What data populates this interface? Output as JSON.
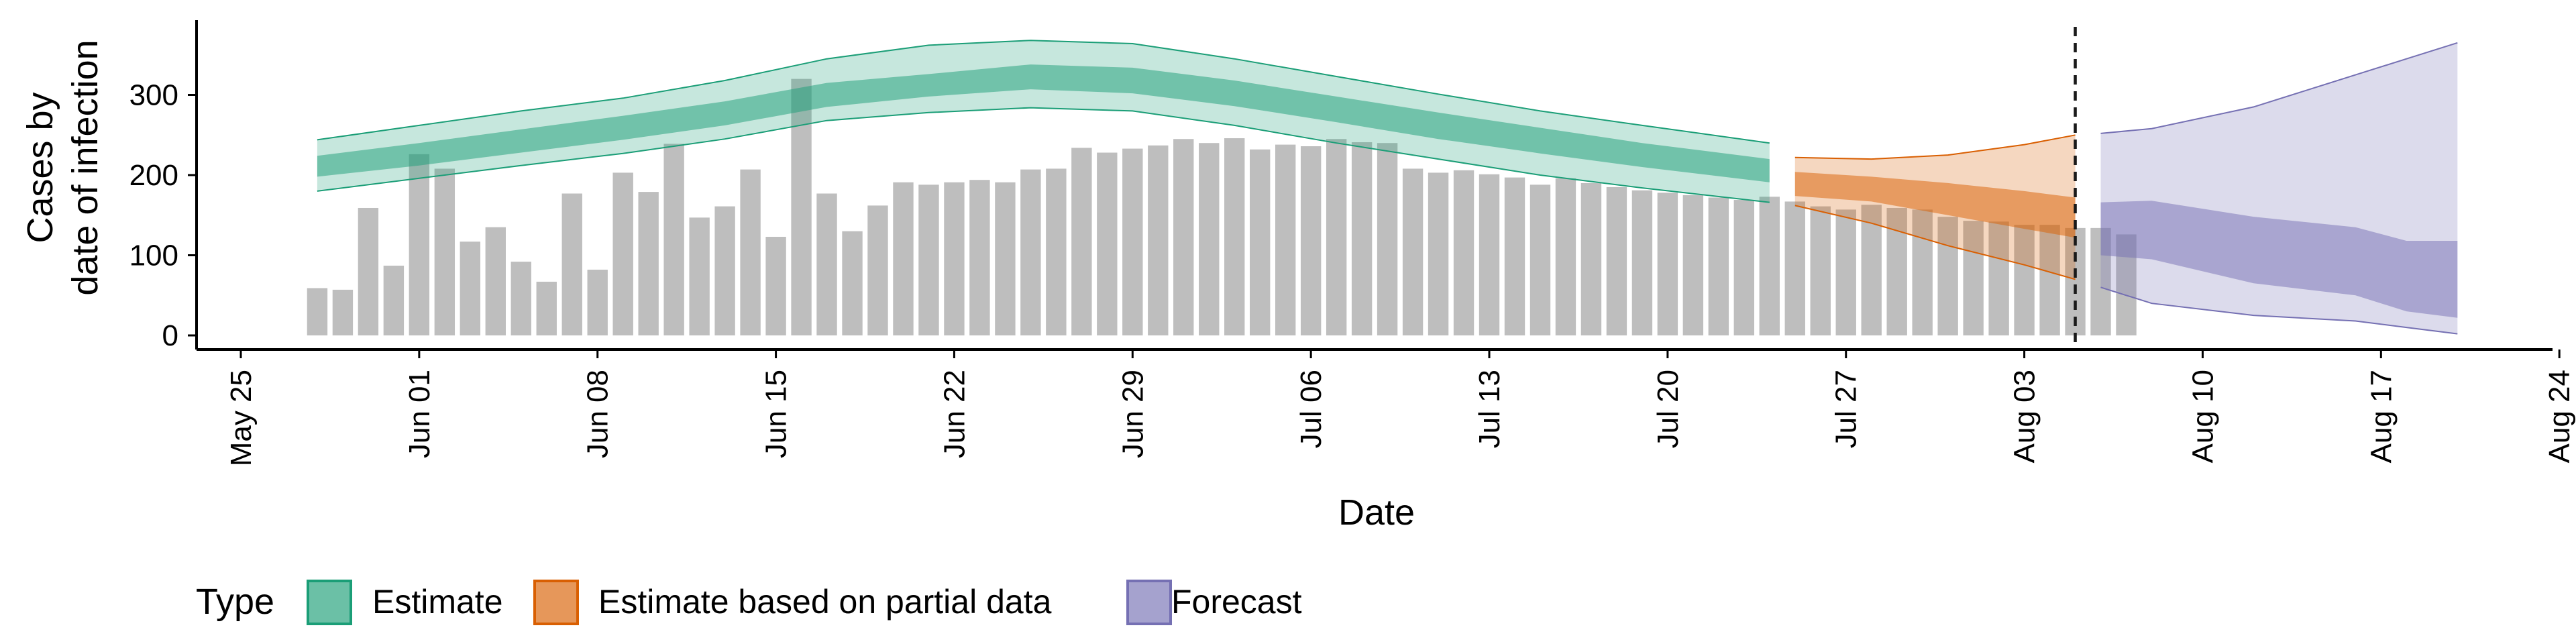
{
  "chart_data": {
    "type": "area",
    "ylabel_lines": [
      "Cases by",
      "date of infection"
    ],
    "xlabel": "Date",
    "x_ticks": [
      "May 25",
      "Jun 01",
      "Jun 08",
      "Jun 15",
      "Jun 22",
      "Jun 29",
      "Jul 06",
      "Jul 13",
      "Jul 20",
      "Jul 27",
      "Aug 03",
      "Aug 10",
      "Aug 17",
      "Aug 24"
    ],
    "y_ticks": [
      0,
      100,
      200,
      300
    ],
    "xlim": [
      "2020-05-25",
      "2020-08-24"
    ],
    "ylim": [
      0,
      390
    ],
    "grid": false,
    "legend_title": "Type",
    "legend_position": "bottom",
    "colors": {
      "bars": "#bebebe",
      "Estimate": "#1b9e77",
      "Estimate based on partial data": "#d95f02",
      "Forecast": "#7570b3"
    },
    "vline_date": "2020-08-05",
    "reported_cases": {
      "start_date": "2020-05-28",
      "values": [
        59,
        57,
        159,
        87,
        226,
        208,
        117,
        135,
        92,
        67,
        177,
        82,
        203,
        179,
        239,
        147,
        161,
        207,
        123,
        320,
        177,
        130,
        162,
        191,
        188,
        191,
        194,
        191,
        207,
        208,
        234,
        228,
        233,
        237,
        245,
        240,
        246,
        232,
        238,
        236,
        245,
        241,
        240,
        208,
        203,
        206,
        201,
        197,
        188,
        196,
        190,
        185,
        181,
        178,
        175,
        172,
        169,
        173,
        167,
        161,
        157,
        163,
        159,
        157,
        148,
        143,
        142,
        138,
        138,
        134,
        134,
        126
      ]
    },
    "series": [
      {
        "name": "Estimate",
        "dates": [
          "2020-05-28",
          "2020-06-01",
          "2020-06-05",
          "2020-06-09",
          "2020-06-13",
          "2020-06-17",
          "2020-06-21",
          "2020-06-25",
          "2020-06-29",
          "2020-07-03",
          "2020-07-07",
          "2020-07-11",
          "2020-07-15",
          "2020-07-19",
          "2020-07-24"
        ],
        "median": [
          210,
          225,
          242,
          258,
          275,
          300,
          312,
          322,
          318,
          303,
          282,
          262,
          243,
          225,
          205
        ],
        "lower_50": [
          198,
          212,
          228,
          244,
          262,
          285,
          298,
          307,
          302,
          286,
          266,
          245,
          227,
          210,
          191
        ],
        "upper_50": [
          224,
          240,
          257,
          274,
          292,
          315,
          326,
          338,
          334,
          318,
          298,
          278,
          259,
          240,
          220
        ],
        "lower_90": [
          180,
          196,
          212,
          227,
          245,
          268,
          278,
          284,
          280,
          262,
          240,
          220,
          200,
          184,
          166
        ],
        "upper_90": [
          244,
          262,
          280,
          296,
          318,
          345,
          362,
          368,
          364,
          345,
          323,
          301,
          280,
          262,
          240
        ]
      },
      {
        "name": "Estimate based on partial data",
        "dates": [
          "2020-07-25",
          "2020-07-28",
          "2020-07-31",
          "2020-08-03",
          "2020-08-05"
        ],
        "median": [
          187,
          180,
          168,
          155,
          148
        ],
        "lower_50": [
          174,
          167,
          150,
          133,
          122
        ],
        "upper_50": [
          204,
          198,
          190,
          180,
          172
        ],
        "lower_90": [
          162,
          140,
          112,
          88,
          70
        ],
        "upper_90": [
          222,
          220,
          225,
          238,
          250
        ]
      },
      {
        "name": "Forecast",
        "dates": [
          "2020-08-06",
          "2020-08-08",
          "2020-08-12",
          "2020-08-16",
          "2020-08-18",
          "2020-08-20"
        ],
        "median": [
          135,
          132,
          110,
          95,
          80,
          70
        ],
        "lower_50": [
          100,
          95,
          65,
          50,
          30,
          22
        ],
        "upper_50": [
          166,
          168,
          148,
          135,
          118,
          118
        ],
        "lower_90": [
          60,
          40,
          25,
          18,
          10,
          2
        ],
        "upper_90": [
          252,
          258,
          285,
          325,
          345,
          365
        ]
      }
    ]
  }
}
